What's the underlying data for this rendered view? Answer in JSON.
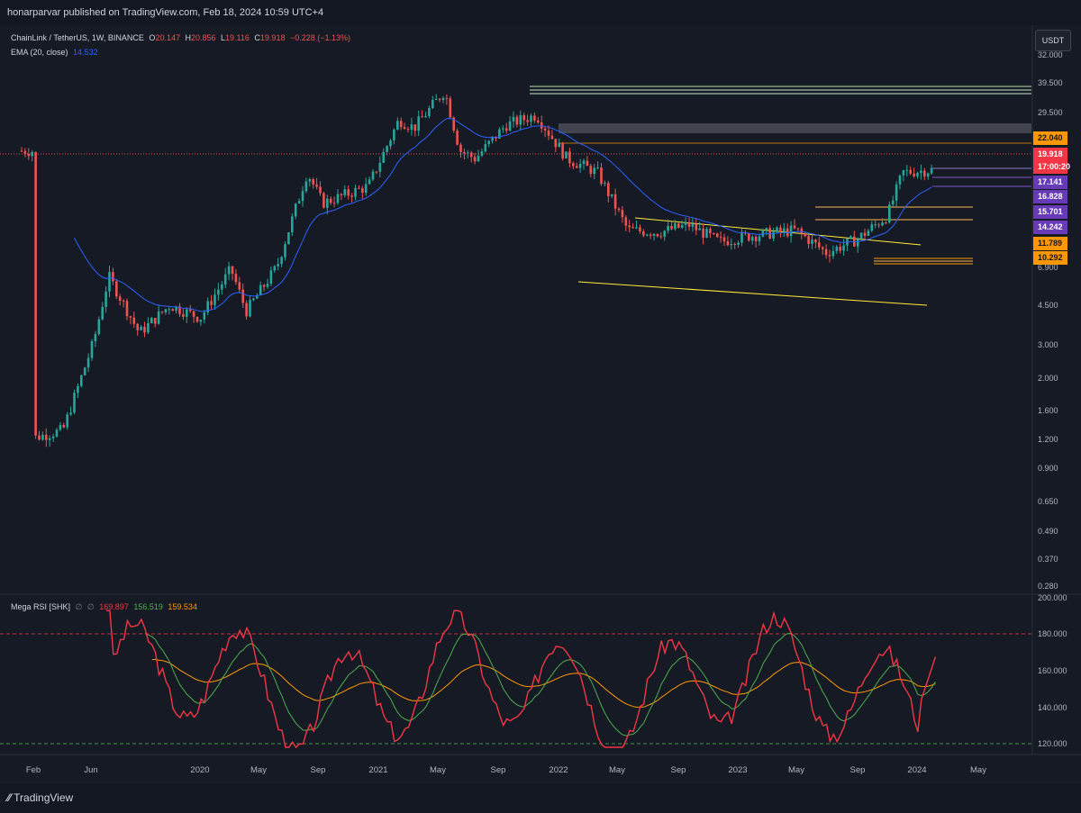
{
  "header": {
    "published_text": "honarparvar published on TradingView.com, Feb 18, 2024 10:59 UTC+4"
  },
  "legend": {
    "symbol": "ChainLink / TetherUS, 1W, BINANCE",
    "o_label": "O",
    "o_value": "20.147",
    "h_label": "H",
    "h_value": "20.856",
    "l_label": "L",
    "l_value": "19.116",
    "c_label": "C",
    "c_value": "19.918",
    "change": "−0.228 (−1.13%)",
    "ema_label": "EMA (20, close)",
    "ema_value": "14.532"
  },
  "currency_button": "USDT",
  "footer": {
    "brand": "TradingView"
  },
  "colors": {
    "up": "#26a69a",
    "down": "#ef5350",
    "ema": "#2962ff",
    "rsi": "#f23645",
    "rsi_signal": "#4caf50",
    "rsi_slow": "#ff9800",
    "trendline": "#ffeb3b"
  },
  "chart_data": [
    {
      "type": "candlestick",
      "title": "ChainLink / TetherUS, 1W, BINANCE",
      "y_scale": "log",
      "price_ticks": [
        "32.000",
        "39.500",
        "29.500",
        "22.040",
        "19.918",
        "17.141",
        "16.828",
        "15.701",
        "14.242",
        "11.789",
        "10.292",
        "6.900",
        "4.500",
        "3.000",
        "2.000",
        "1.600",
        "1.200",
        "0.900",
        "0.650",
        "0.490",
        "0.370",
        "0.280"
      ],
      "x_ticks": [
        "Feb",
        "Jun",
        "2020",
        "May",
        "Sep",
        "2021",
        "May",
        "Sep",
        "2022",
        "May",
        "Sep",
        "2023",
        "May",
        "Sep",
        "2024",
        "May"
      ],
      "current_price": "19.918",
      "countdown": "17:00:20",
      "price_levels": [
        {
          "label": "22.040",
          "color": "#ff9800"
        },
        {
          "label": "17.141",
          "color": "#673ab7"
        },
        {
          "label": "16.828",
          "color": "#673ab7"
        },
        {
          "label": "15.701",
          "color": "#673ab7"
        },
        {
          "label": "14.242",
          "color": "#673ab7"
        },
        {
          "label": "11.789",
          "color": "#ff9800"
        },
        {
          "label": "10.292",
          "color": "#ff9800"
        }
      ],
      "ema": {
        "name": "EMA (20, close)",
        "last": "14.532"
      },
      "price_path": [
        {
          "t": "2019-02",
          "p": 0.45
        },
        {
          "t": "2019-04",
          "p": 0.5
        },
        {
          "t": "2019-06",
          "p": 1.6
        },
        {
          "t": "2019-07",
          "p": 3.8
        },
        {
          "t": "2019-09",
          "p": 1.8
        },
        {
          "t": "2019-11",
          "p": 2.6
        },
        {
          "t": "2020-01",
          "p": 2.2
        },
        {
          "t": "2020-03",
          "p": 4.2
        },
        {
          "t": "2020-04",
          "p": 2.4
        },
        {
          "t": "2020-06",
          "p": 4.3
        },
        {
          "t": "2020-08",
          "p": 15.0
        },
        {
          "t": "2020-09",
          "p": 10.0
        },
        {
          "t": "2020-12",
          "p": 12.5
        },
        {
          "t": "2021-02",
          "p": 30.0
        },
        {
          "t": "2021-03",
          "p": 27.0
        },
        {
          "t": "2021-05",
          "p": 44.0
        },
        {
          "t": "2021-06",
          "p": 20.0
        },
        {
          "t": "2021-07",
          "p": 18.0
        },
        {
          "t": "2021-09",
          "p": 28.0
        },
        {
          "t": "2021-11",
          "p": 32.0
        },
        {
          "t": "2022-01",
          "p": 18.0
        },
        {
          "t": "2022-03",
          "p": 15.0
        },
        {
          "t": "2022-05",
          "p": 7.0
        },
        {
          "t": "2022-07",
          "p": 6.8
        },
        {
          "t": "2022-09",
          "p": 7.5
        },
        {
          "t": "2022-11",
          "p": 6.0
        },
        {
          "t": "2023-01",
          "p": 6.5
        },
        {
          "t": "2023-04",
          "p": 7.0
        },
        {
          "t": "2023-06",
          "p": 5.2
        },
        {
          "t": "2023-08",
          "p": 6.2
        },
        {
          "t": "2023-10",
          "p": 8.5
        },
        {
          "t": "2023-11",
          "p": 15.0
        },
        {
          "t": "2024-01",
          "p": 15.5
        },
        {
          "t": "2024-02",
          "p": 19.918
        }
      ]
    },
    {
      "type": "line",
      "title": "Mega RSI [SHK]",
      "legend_values": [
        "169.897",
        "156.519",
        "159.534"
      ],
      "y_ticks": [
        "200.000",
        "180.000",
        "160.000",
        "140.000",
        "120.000"
      ],
      "ylim": [
        115,
        202
      ],
      "bands": [
        180,
        120
      ],
      "series": [
        {
          "name": "RSI",
          "color": "#f23645"
        },
        {
          "name": "signal",
          "color": "#4caf50"
        },
        {
          "name": "slow",
          "color": "#ff9800"
        }
      ]
    }
  ]
}
